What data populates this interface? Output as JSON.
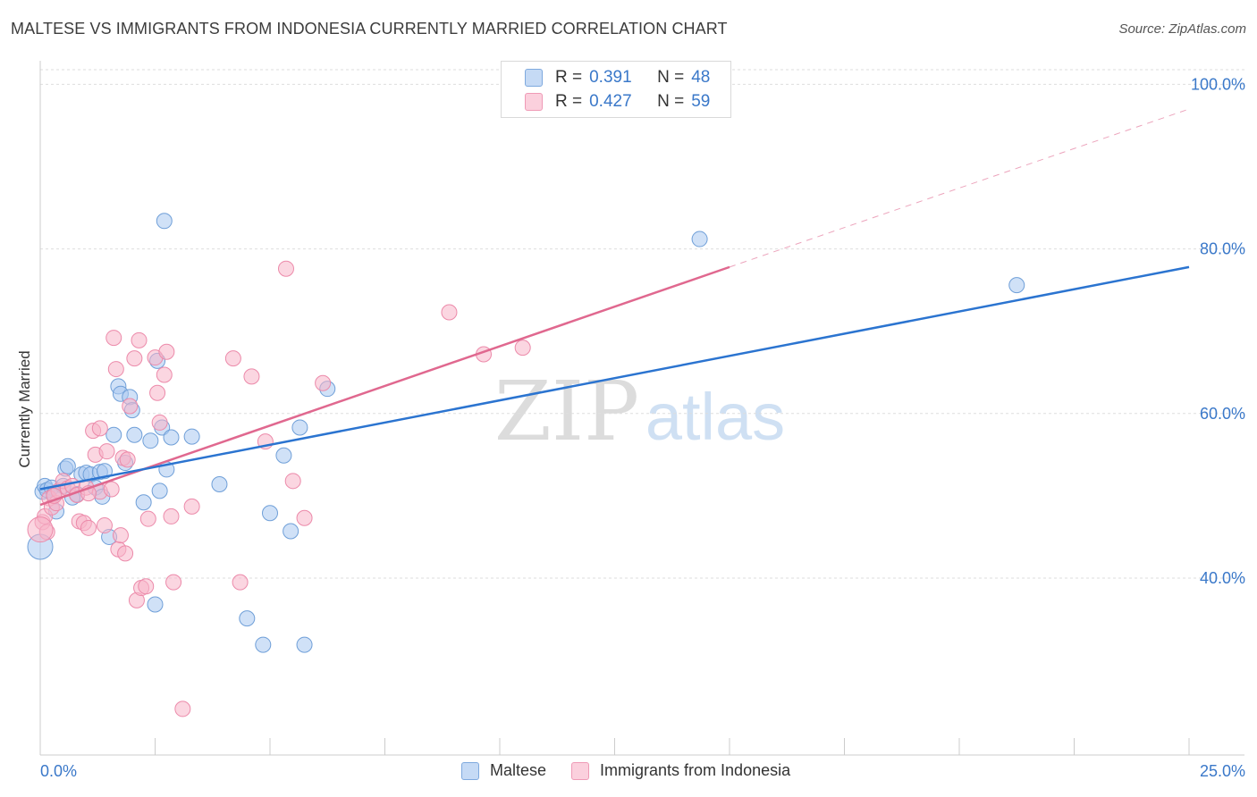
{
  "header": {
    "title": "MALTESE VS IMMIGRANTS FROM INDONESIA CURRENTLY MARRIED CORRELATION CHART",
    "source": "Source: ZipAtlas.com"
  },
  "legend": {
    "rows": [
      {
        "r_label": "R =",
        "r_value": "0.391",
        "n_label": "N =",
        "n_value": "48",
        "color": "#a9c8f0"
      },
      {
        "r_label": "R =",
        "r_value": "0.427",
        "n_label": "N =",
        "n_value": "59",
        "color": "#f7b5c8"
      }
    ]
  },
  "watermark": {
    "zip": "ZIP",
    "atlas": "atlas"
  },
  "chart_data": {
    "type": "scatter",
    "title": "MALTESE VS IMMIGRANTS FROM INDONESIA CURRENTLY MARRIED CORRELATION CHART",
    "xlabel": "",
    "ylabel": "Currently Married",
    "xlim": [
      0,
      25
    ],
    "ylim": [
      18.5,
      102
    ],
    "x_tick_labels": [
      "0.0%",
      "25.0%"
    ],
    "y_ticks": [
      40,
      60,
      80,
      100
    ],
    "y_tick_labels": [
      "40.0%",
      "60.0%",
      "80.0%",
      "100.0%"
    ],
    "grid": true,
    "legend_position": "top-center",
    "series": [
      {
        "name": "Maltese",
        "color": "#a9c8f0",
        "stroke": "#6f9fd8",
        "line_color": "#2b74d0",
        "r": 0.391,
        "n": 48,
        "trend": {
          "x": [
            0,
            25
          ],
          "y": [
            50.8,
            77.8
          ]
        },
        "points": [
          [
            0.05,
            50.5
          ],
          [
            0.1,
            51.2
          ],
          [
            0.15,
            50.7
          ],
          [
            0.25,
            51.0
          ],
          [
            0.3,
            50.2
          ],
          [
            0.35,
            48.1
          ],
          [
            0.5,
            51.2
          ],
          [
            0.55,
            53.3
          ],
          [
            0.6,
            53.6
          ],
          [
            0.8,
            50.2
          ],
          [
            0.9,
            52.6
          ],
          [
            1.0,
            52.8
          ],
          [
            1.1,
            52.6
          ],
          [
            1.2,
            51.0
          ],
          [
            1.3,
            52.9
          ],
          [
            1.35,
            49.9
          ],
          [
            1.5,
            45.0
          ],
          [
            1.6,
            57.4
          ],
          [
            1.7,
            63.3
          ],
          [
            1.75,
            62.4
          ],
          [
            1.85,
            54.0
          ],
          [
            1.95,
            62.0
          ],
          [
            2.0,
            60.4
          ],
          [
            2.05,
            57.4
          ],
          [
            2.25,
            49.2
          ],
          [
            2.4,
            56.7
          ],
          [
            2.5,
            36.8
          ],
          [
            2.55,
            66.4
          ],
          [
            2.6,
            50.6
          ],
          [
            2.65,
            58.3
          ],
          [
            2.7,
            83.4
          ],
          [
            2.75,
            53.2
          ],
          [
            2.85,
            57.1
          ],
          [
            3.3,
            57.2
          ],
          [
            3.9,
            51.4
          ],
          [
            4.5,
            35.1
          ],
          [
            4.85,
            31.9
          ],
          [
            5.0,
            47.9
          ],
          [
            5.3,
            54.9
          ],
          [
            5.45,
            45.7
          ],
          [
            5.65,
            58.3
          ],
          [
            5.75,
            31.9
          ],
          [
            6.25,
            63.0
          ],
          [
            14.35,
            81.2
          ],
          [
            21.25,
            75.6
          ],
          [
            0.0,
            43.8
          ],
          [
            0.7,
            49.8
          ],
          [
            1.4,
            53.0
          ]
        ]
      },
      {
        "name": "Immigrants from Indonesia",
        "color": "#f7b5c8",
        "stroke": "#ec8aaa",
        "line_color": "#e0688f",
        "r": 0.427,
        "n": 59,
        "trend": {
          "x": [
            0,
            15
          ],
          "y": [
            48.9,
            77.8
          ]
        },
        "trend_dashed": {
          "x": [
            15,
            25
          ],
          "y": [
            77.8,
            97.0
          ]
        },
        "points": [
          [
            0.05,
            46.8
          ],
          [
            0.1,
            47.5
          ],
          [
            0.15,
            45.6
          ],
          [
            0.2,
            49.7
          ],
          [
            0.25,
            48.6
          ],
          [
            0.35,
            49.1
          ],
          [
            0.4,
            50.6
          ],
          [
            0.5,
            51.8
          ],
          [
            0.6,
            50.9
          ],
          [
            0.7,
            51.2
          ],
          [
            0.8,
            50.1
          ],
          [
            0.85,
            46.9
          ],
          [
            0.95,
            46.7
          ],
          [
            1.0,
            51.0
          ],
          [
            1.05,
            46.1
          ],
          [
            1.15,
            57.9
          ],
          [
            1.2,
            55.0
          ],
          [
            1.3,
            50.5
          ],
          [
            1.3,
            58.2
          ],
          [
            1.4,
            46.4
          ],
          [
            1.45,
            55.4
          ],
          [
            1.55,
            50.8
          ],
          [
            1.6,
            69.2
          ],
          [
            1.65,
            65.4
          ],
          [
            1.7,
            43.5
          ],
          [
            1.75,
            45.2
          ],
          [
            1.8,
            54.6
          ],
          [
            1.85,
            43.0
          ],
          [
            1.9,
            54.4
          ],
          [
            1.95,
            60.9
          ],
          [
            2.05,
            66.7
          ],
          [
            2.1,
            37.3
          ],
          [
            2.15,
            68.9
          ],
          [
            2.2,
            38.8
          ],
          [
            2.3,
            39.0
          ],
          [
            2.35,
            47.2
          ],
          [
            2.5,
            66.8
          ],
          [
            2.55,
            62.5
          ],
          [
            2.6,
            58.9
          ],
          [
            2.7,
            64.7
          ],
          [
            2.75,
            67.5
          ],
          [
            2.85,
            47.5
          ],
          [
            2.9,
            39.5
          ],
          [
            3.1,
            24.1
          ],
          [
            3.3,
            48.7
          ],
          [
            4.2,
            66.7
          ],
          [
            4.35,
            39.5
          ],
          [
            4.6,
            64.5
          ],
          [
            4.9,
            56.6
          ],
          [
            5.35,
            77.6
          ],
          [
            5.5,
            51.8
          ],
          [
            5.75,
            47.3
          ],
          [
            6.15,
            63.7
          ],
          [
            8.9,
            72.3
          ],
          [
            9.65,
            67.2
          ],
          [
            10.5,
            68.0
          ],
          [
            0.0,
            45.9
          ],
          [
            0.3,
            50.0
          ],
          [
            1.05,
            50.3
          ]
        ]
      }
    ]
  },
  "bottom_legend": [
    {
      "label": "Maltese",
      "color": "#a9c8f0"
    },
    {
      "label": "Immigrants from Indonesia",
      "color": "#f7b5c8"
    }
  ]
}
